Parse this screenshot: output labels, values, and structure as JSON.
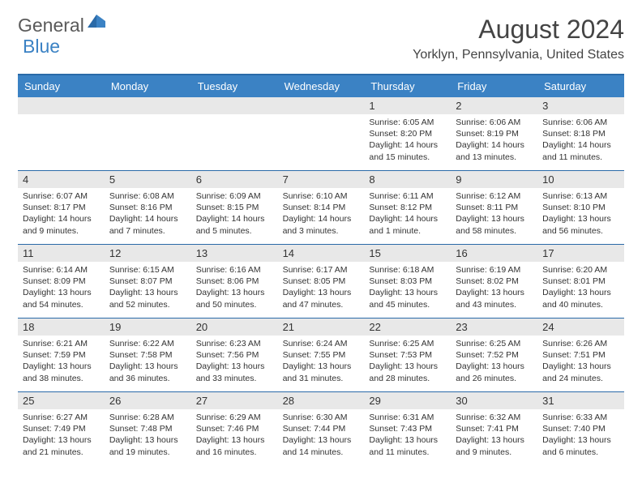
{
  "logo": {
    "text1": "General",
    "text2": "Blue",
    "color1": "#5a5a5a",
    "color2": "#3b82c4"
  },
  "title": "August 2024",
  "location": "Yorklyn, Pennsylvania, United States",
  "accent_color": "#3b82c4",
  "border_color": "#2a6aa8",
  "daynum_bg": "#e8e8e8",
  "day_headers": [
    "Sunday",
    "Monday",
    "Tuesday",
    "Wednesday",
    "Thursday",
    "Friday",
    "Saturday"
  ],
  "weeks": [
    [
      {
        "n": "",
        "sr": "",
        "ss": "",
        "dl": ""
      },
      {
        "n": "",
        "sr": "",
        "ss": "",
        "dl": ""
      },
      {
        "n": "",
        "sr": "",
        "ss": "",
        "dl": ""
      },
      {
        "n": "",
        "sr": "",
        "ss": "",
        "dl": ""
      },
      {
        "n": "1",
        "sr": "Sunrise: 6:05 AM",
        "ss": "Sunset: 8:20 PM",
        "dl": "Daylight: 14 hours and 15 minutes."
      },
      {
        "n": "2",
        "sr": "Sunrise: 6:06 AM",
        "ss": "Sunset: 8:19 PM",
        "dl": "Daylight: 14 hours and 13 minutes."
      },
      {
        "n": "3",
        "sr": "Sunrise: 6:06 AM",
        "ss": "Sunset: 8:18 PM",
        "dl": "Daylight: 14 hours and 11 minutes."
      }
    ],
    [
      {
        "n": "4",
        "sr": "Sunrise: 6:07 AM",
        "ss": "Sunset: 8:17 PM",
        "dl": "Daylight: 14 hours and 9 minutes."
      },
      {
        "n": "5",
        "sr": "Sunrise: 6:08 AM",
        "ss": "Sunset: 8:16 PM",
        "dl": "Daylight: 14 hours and 7 minutes."
      },
      {
        "n": "6",
        "sr": "Sunrise: 6:09 AM",
        "ss": "Sunset: 8:15 PM",
        "dl": "Daylight: 14 hours and 5 minutes."
      },
      {
        "n": "7",
        "sr": "Sunrise: 6:10 AM",
        "ss": "Sunset: 8:14 PM",
        "dl": "Daylight: 14 hours and 3 minutes."
      },
      {
        "n": "8",
        "sr": "Sunrise: 6:11 AM",
        "ss": "Sunset: 8:12 PM",
        "dl": "Daylight: 14 hours and 1 minute."
      },
      {
        "n": "9",
        "sr": "Sunrise: 6:12 AM",
        "ss": "Sunset: 8:11 PM",
        "dl": "Daylight: 13 hours and 58 minutes."
      },
      {
        "n": "10",
        "sr": "Sunrise: 6:13 AM",
        "ss": "Sunset: 8:10 PM",
        "dl": "Daylight: 13 hours and 56 minutes."
      }
    ],
    [
      {
        "n": "11",
        "sr": "Sunrise: 6:14 AM",
        "ss": "Sunset: 8:09 PM",
        "dl": "Daylight: 13 hours and 54 minutes."
      },
      {
        "n": "12",
        "sr": "Sunrise: 6:15 AM",
        "ss": "Sunset: 8:07 PM",
        "dl": "Daylight: 13 hours and 52 minutes."
      },
      {
        "n": "13",
        "sr": "Sunrise: 6:16 AM",
        "ss": "Sunset: 8:06 PM",
        "dl": "Daylight: 13 hours and 50 minutes."
      },
      {
        "n": "14",
        "sr": "Sunrise: 6:17 AM",
        "ss": "Sunset: 8:05 PM",
        "dl": "Daylight: 13 hours and 47 minutes."
      },
      {
        "n": "15",
        "sr": "Sunrise: 6:18 AM",
        "ss": "Sunset: 8:03 PM",
        "dl": "Daylight: 13 hours and 45 minutes."
      },
      {
        "n": "16",
        "sr": "Sunrise: 6:19 AM",
        "ss": "Sunset: 8:02 PM",
        "dl": "Daylight: 13 hours and 43 minutes."
      },
      {
        "n": "17",
        "sr": "Sunrise: 6:20 AM",
        "ss": "Sunset: 8:01 PM",
        "dl": "Daylight: 13 hours and 40 minutes."
      }
    ],
    [
      {
        "n": "18",
        "sr": "Sunrise: 6:21 AM",
        "ss": "Sunset: 7:59 PM",
        "dl": "Daylight: 13 hours and 38 minutes."
      },
      {
        "n": "19",
        "sr": "Sunrise: 6:22 AM",
        "ss": "Sunset: 7:58 PM",
        "dl": "Daylight: 13 hours and 36 minutes."
      },
      {
        "n": "20",
        "sr": "Sunrise: 6:23 AM",
        "ss": "Sunset: 7:56 PM",
        "dl": "Daylight: 13 hours and 33 minutes."
      },
      {
        "n": "21",
        "sr": "Sunrise: 6:24 AM",
        "ss": "Sunset: 7:55 PM",
        "dl": "Daylight: 13 hours and 31 minutes."
      },
      {
        "n": "22",
        "sr": "Sunrise: 6:25 AM",
        "ss": "Sunset: 7:53 PM",
        "dl": "Daylight: 13 hours and 28 minutes."
      },
      {
        "n": "23",
        "sr": "Sunrise: 6:25 AM",
        "ss": "Sunset: 7:52 PM",
        "dl": "Daylight: 13 hours and 26 minutes."
      },
      {
        "n": "24",
        "sr": "Sunrise: 6:26 AM",
        "ss": "Sunset: 7:51 PM",
        "dl": "Daylight: 13 hours and 24 minutes."
      }
    ],
    [
      {
        "n": "25",
        "sr": "Sunrise: 6:27 AM",
        "ss": "Sunset: 7:49 PM",
        "dl": "Daylight: 13 hours and 21 minutes."
      },
      {
        "n": "26",
        "sr": "Sunrise: 6:28 AM",
        "ss": "Sunset: 7:48 PM",
        "dl": "Daylight: 13 hours and 19 minutes."
      },
      {
        "n": "27",
        "sr": "Sunrise: 6:29 AM",
        "ss": "Sunset: 7:46 PM",
        "dl": "Daylight: 13 hours and 16 minutes."
      },
      {
        "n": "28",
        "sr": "Sunrise: 6:30 AM",
        "ss": "Sunset: 7:44 PM",
        "dl": "Daylight: 13 hours and 14 minutes."
      },
      {
        "n": "29",
        "sr": "Sunrise: 6:31 AM",
        "ss": "Sunset: 7:43 PM",
        "dl": "Daylight: 13 hours and 11 minutes."
      },
      {
        "n": "30",
        "sr": "Sunrise: 6:32 AM",
        "ss": "Sunset: 7:41 PM",
        "dl": "Daylight: 13 hours and 9 minutes."
      },
      {
        "n": "31",
        "sr": "Sunrise: 6:33 AM",
        "ss": "Sunset: 7:40 PM",
        "dl": "Daylight: 13 hours and 6 minutes."
      }
    ]
  ]
}
